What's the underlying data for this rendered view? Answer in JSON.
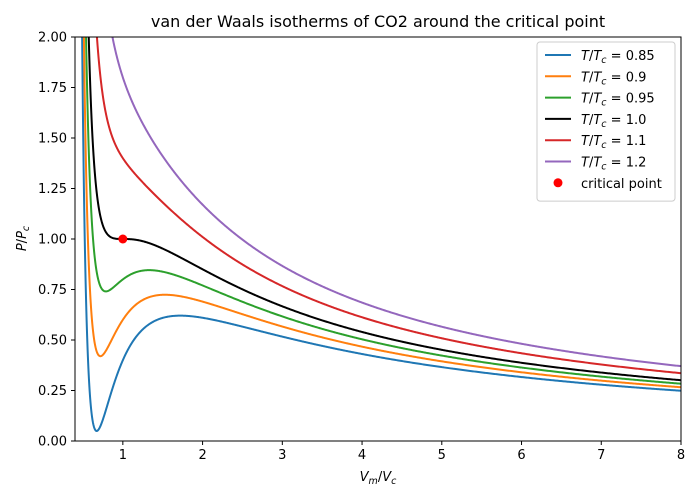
{
  "chart_data": {
    "type": "line",
    "title": "van der Waals isotherms of CO2 around the critical point",
    "xlabel": {
      "base": "V",
      "sub": "m",
      "sep": "/",
      "base2": "V",
      "sub2": "c"
    },
    "ylabel": {
      "base": "P",
      "sep": "/",
      "base2": "P",
      "sub2": "c"
    },
    "xlim": [
      0.4,
      8
    ],
    "ylim": [
      0,
      2
    ],
    "x_ticks": [
      1,
      2,
      3,
      4,
      5,
      6,
      7,
      8
    ],
    "y_ticks": [
      0.0,
      0.25,
      0.5,
      0.75,
      1.0,
      1.25,
      1.5,
      1.75,
      2.0
    ],
    "legend_position": "top-right",
    "series": [
      {
        "name": "T/Tc = 0.85",
        "label_main": "T",
        "label_sub": "c",
        "value": "0.85",
        "Tr": 0.85,
        "color": "#1f77b4"
      },
      {
        "name": "T/Tc = 0.9",
        "label_main": "T",
        "label_sub": "c",
        "value": "0.9",
        "Tr": 0.9,
        "color": "#ff7f0e"
      },
      {
        "name": "T/Tc = 0.95",
        "label_main": "T",
        "label_sub": "c",
        "value": "0.95",
        "Tr": 0.95,
        "color": "#2ca02c"
      },
      {
        "name": "T/Tc = 1.0",
        "label_main": "T",
        "label_sub": "c",
        "value": "1.0",
        "Tr": 1.0,
        "color": "#000000"
      },
      {
        "name": "T/Tc = 1.1",
        "label_main": "T",
        "label_sub": "c",
        "value": "1.1",
        "Tr": 1.1,
        "color": "#d62728"
      },
      {
        "name": "T/Tc = 1.2",
        "label_main": "T",
        "label_sub": "c",
        "value": "1.2",
        "Tr": 1.2,
        "color": "#9467bd"
      }
    ],
    "critical_point": {
      "name": "critical point",
      "x": 1,
      "y": 1,
      "color": "#ff0000"
    }
  }
}
